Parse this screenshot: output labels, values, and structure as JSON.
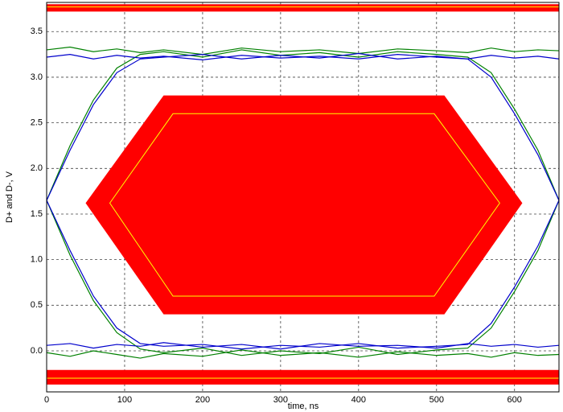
{
  "chart_data": {
    "type": "eye",
    "xlabel": "time, ns",
    "ylabel": "D+ and D-, V",
    "xlim": [
      0,
      657
    ],
    "ylim": [
      -0.45,
      3.82
    ],
    "xticks": [
      0,
      100,
      200,
      300,
      400,
      500,
      600
    ],
    "yticks": [
      {
        "value": 0,
        "label": "0.0"
      },
      0.5,
      {
        "value": 1,
        "label": "1.0"
      },
      1.5,
      {
        "value": 2,
        "label": "2.0"
      },
      2.5,
      {
        "value": 3,
        "label": "3.0"
      },
      3.5
    ],
    "grid": true,
    "masks": [
      {
        "color": "#ff0000",
        "x": [
          0,
          657,
          657,
          0
        ],
        "y": [
          3.72,
          3.72,
          3.8,
          3.8
        ]
      },
      {
        "color": "#ff0000",
        "x": [
          0,
          657,
          657,
          0
        ],
        "y": [
          -0.21,
          -0.21,
          -0.37,
          -0.37
        ]
      },
      {
        "color": "#ff0000",
        "x": [
          50,
          150,
          510,
          610,
          510,
          150
        ],
        "y": [
          1.62,
          2.8,
          2.8,
          1.62,
          0.4,
          0.4
        ]
      }
    ],
    "outlines": [
      {
        "color": "#ffff00",
        "x": [
          81,
          162,
          497,
          581,
          497,
          162
        ],
        "y": [
          1.62,
          2.6,
          2.6,
          1.62,
          0.6,
          0.6
        ]
      }
    ],
    "limit_lines": [
      {
        "color": "#ffff00",
        "y": 3.77
      },
      {
        "color": "#ffff00",
        "y": -0.3
      }
    ],
    "x": [
      0,
      30,
      60,
      90,
      120,
      150,
      200,
      250,
      300,
      350,
      400,
      450,
      500,
      540,
      570,
      600,
      630,
      657
    ],
    "series": [
      {
        "color": "#008000",
        "values": [
          3.3,
          3.33,
          3.28,
          3.31,
          3.27,
          3.3,
          3.25,
          3.32,
          3.28,
          3.3,
          3.26,
          3.31,
          3.29,
          3.27,
          3.32,
          3.28,
          3.3,
          3.29
        ]
      },
      {
        "color": "#008000",
        "values": [
          -0.02,
          -0.06,
          0.0,
          -0.04,
          -0.08,
          -0.03,
          -0.06,
          0.01,
          -0.05,
          -0.02,
          -0.07,
          -0.01,
          -0.05,
          -0.03,
          -0.07,
          -0.02,
          -0.05,
          -0.04
        ]
      },
      {
        "color": "#008000",
        "values": [
          1.65,
          2.25,
          2.75,
          3.1,
          3.25,
          3.28,
          3.22,
          3.3,
          3.24,
          3.27,
          3.22,
          3.28,
          3.25,
          3.22,
          3.05,
          2.65,
          2.2,
          1.65
        ]
      },
      {
        "color": "#008000",
        "values": [
          1.65,
          1.05,
          0.55,
          0.2,
          0.02,
          -0.02,
          0.03,
          -0.05,
          0.0,
          -0.03,
          0.04,
          -0.04,
          0.01,
          0.03,
          0.25,
          0.65,
          1.1,
          1.65
        ]
      },
      {
        "color": "#0000cc",
        "values": [
          3.22,
          3.25,
          3.2,
          3.24,
          3.21,
          3.23,
          3.19,
          3.24,
          3.21,
          3.23,
          3.2,
          3.25,
          3.22,
          3.2,
          3.24,
          3.21,
          3.23,
          3.2
        ]
      },
      {
        "color": "#0000cc",
        "values": [
          0.06,
          0.08,
          0.03,
          0.07,
          0.05,
          0.09,
          0.04,
          0.07,
          0.02,
          0.08,
          0.05,
          0.06,
          0.03,
          0.08,
          0.05,
          0.07,
          0.04,
          0.06
        ]
      },
      {
        "color": "#0000cc",
        "values": [
          1.65,
          2.2,
          2.7,
          3.05,
          3.2,
          3.22,
          3.25,
          3.2,
          3.24,
          3.21,
          3.26,
          3.2,
          3.23,
          3.2,
          3.0,
          2.6,
          2.15,
          1.65
        ]
      },
      {
        "color": "#0000cc",
        "values": [
          1.65,
          1.1,
          0.6,
          0.25,
          0.08,
          0.05,
          0.07,
          0.02,
          0.06,
          0.04,
          0.08,
          0.03,
          0.05,
          0.07,
          0.3,
          0.7,
          1.15,
          1.65
        ]
      }
    ]
  }
}
